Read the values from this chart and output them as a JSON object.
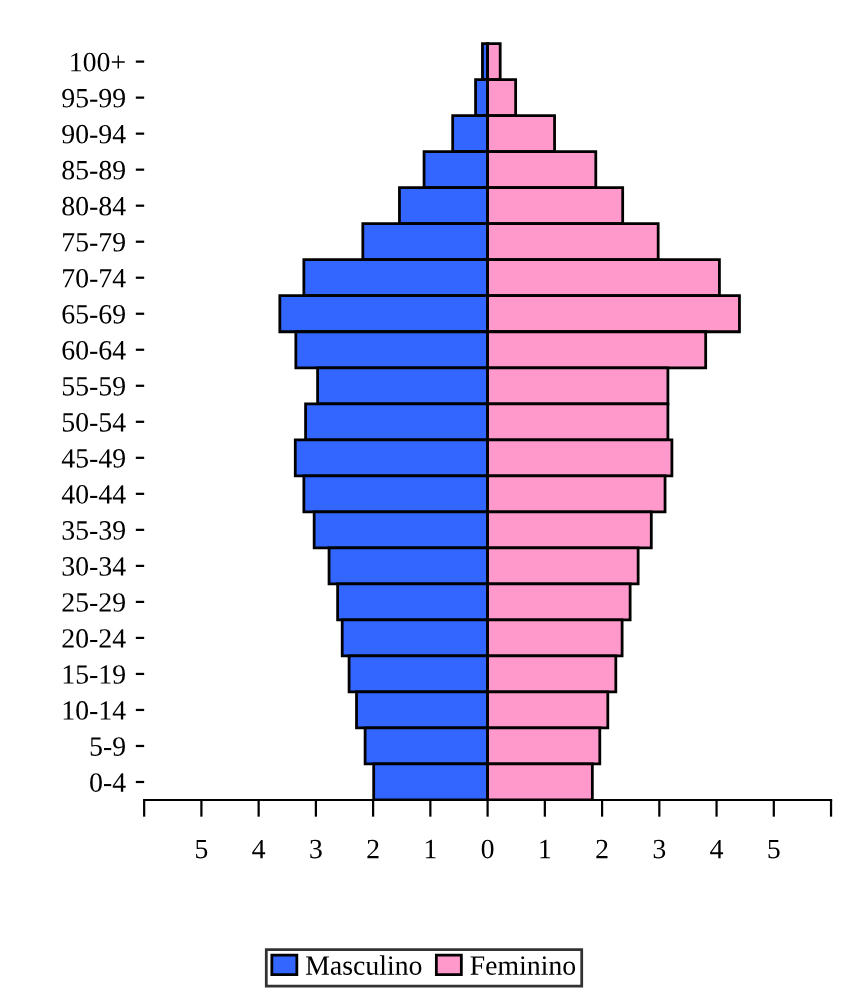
{
  "chart_data": {
    "type": "bar",
    "orientation": "horizontal",
    "categories": [
      "100+",
      "95-99",
      "90-94",
      "85-89",
      "80-84",
      "75-79",
      "70-74",
      "65-69",
      "60-64",
      "55-59",
      "50-54",
      "45-49",
      "40-44",
      "35-39",
      "30-34",
      "25-29",
      "20-24",
      "15-19",
      "10-14",
      "5-9",
      "0-4"
    ],
    "series": [
      {
        "name": "Masculino",
        "color": "#3366ff",
        "values": [
          -0.09,
          -0.21,
          -0.61,
          -1.11,
          -1.54,
          -2.18,
          -3.21,
          -3.63,
          -3.35,
          -2.97,
          -3.18,
          -3.36,
          -3.21,
          -3.03,
          -2.77,
          -2.62,
          -2.54,
          -2.42,
          -2.29,
          -2.14,
          -1.99
        ]
      },
      {
        "name": "Feminino",
        "color": "#ff99cc",
        "values": [
          0.22,
          0.49,
          1.17,
          1.89,
          2.36,
          2.98,
          4.05,
          4.4,
          3.81,
          3.15,
          3.15,
          3.22,
          3.1,
          2.86,
          2.63,
          2.49,
          2.35,
          2.24,
          2.1,
          1.96,
          1.83
        ]
      }
    ],
    "xlim": [
      -6,
      6
    ],
    "xticks": [
      {
        "value": -6,
        "label": null
      },
      {
        "value": -5,
        "label": "5"
      },
      {
        "value": -4,
        "label": "4"
      },
      {
        "value": -3,
        "label": "3"
      },
      {
        "value": -2,
        "label": "2"
      },
      {
        "value": -1,
        "label": "1"
      },
      0,
      1,
      2,
      3,
      4,
      5,
      {
        "value": 6,
        "label": null
      }
    ],
    "grid": false,
    "legend": "bottom",
    "stacked": true
  }
}
